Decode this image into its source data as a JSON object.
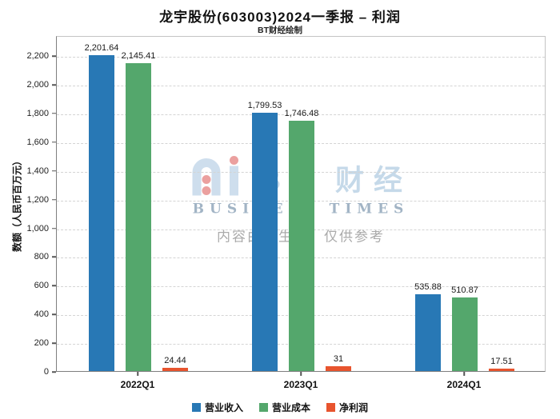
{
  "title": "龙宇股份(603003)2024一季报 – 利润",
  "subtitle": "BT财经绘制",
  "watermark": {
    "logo_text": "BT 财经",
    "logo_subtext": "BUSINESS TIMES",
    "disclaimer": "内容由AI生成，仅供参考"
  },
  "chart_data": {
    "type": "bar",
    "title": "龙宇股份(603003)2024一季报 – 利润",
    "subtitle": "BT财经绘制",
    "ylabel": "数额（人民币百万元）",
    "categories": [
      "2022Q1",
      "2023Q1",
      "2024Q1"
    ],
    "series": [
      {
        "name": "营业收入",
        "color": "#2878b5",
        "values": [
          2201.64,
          1799.53,
          535.88
        ],
        "labels": [
          "2,201.64",
          "1,799.53",
          "535.88"
        ]
      },
      {
        "name": "营业成本",
        "color": "#54a76c",
        "values": [
          2145.41,
          1746.48,
          510.87
        ],
        "labels": [
          "2,145.41",
          "1,746.48",
          "510.87"
        ]
      },
      {
        "name": "净利润",
        "color": "#e8542e",
        "values": [
          24.44,
          31,
          17.51
        ],
        "labels": [
          "24.44",
          "31",
          "17.51"
        ]
      }
    ],
    "ylim": [
      0,
      2340
    ],
    "yticks": [
      0,
      200,
      400,
      600,
      800,
      1000,
      1200,
      1400,
      1600,
      1800,
      2000,
      2200
    ],
    "ytick_labels": [
      "0",
      "200",
      "400",
      "600",
      "800",
      "1,000",
      "1,200",
      "1,400",
      "1,600",
      "1,800",
      "2,000",
      "2,200"
    ],
    "grid": "horizontal-dashed",
    "legend_position": "bottom"
  }
}
